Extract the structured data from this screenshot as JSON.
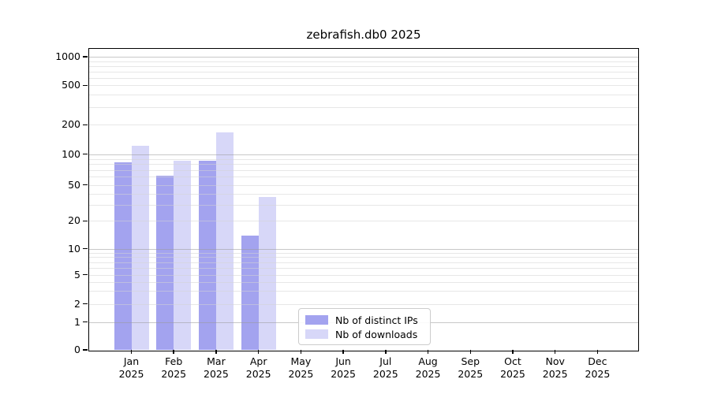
{
  "title": "zebrafish.db0 2025",
  "chart_data": {
    "type": "bar",
    "title": "zebrafish.db0 2025",
    "categories": [
      "Jan",
      "Feb",
      "Mar",
      "Apr",
      "May",
      "Jun",
      "Jul",
      "Aug",
      "Sep",
      "Oct",
      "Nov",
      "Dec"
    ],
    "x_tick_line2": "2025",
    "series": [
      {
        "name": "Nb of distinct IPs",
        "color": "#a3a3ef",
        "values": [
          83,
          62,
          86,
          14,
          0,
          0,
          0,
          0,
          0,
          0,
          0,
          0
        ]
      },
      {
        "name": "Nb of downloads",
        "color": "#d7d7f8",
        "values": [
          123,
          87,
          166,
          37,
          0,
          0,
          0,
          0,
          0,
          0,
          0,
          0
        ]
      }
    ],
    "y_ticks": [
      0,
      1,
      2,
      5,
      10,
      20,
      50,
      100,
      200,
      500,
      1000
    ],
    "y_tick_labels": [
      "0",
      "1",
      "2",
      "5",
      "10",
      "20",
      "50",
      "100",
      "200",
      "500",
      "1000"
    ],
    "ylim": [
      0,
      1000
    ],
    "yscale": "log",
    "grid": "horizontal major and log-minor gridlines",
    "legend_position": "lower center (inside plot)"
  },
  "colors": {
    "background": "#ffffff",
    "axis": "#000000",
    "grid_major": "#c9c9c9",
    "grid_minor": "#e9e9e9",
    "legend_border": "#cccccc",
    "series_dark": "#a3a3ef",
    "series_light": "#d7d7f8"
  }
}
